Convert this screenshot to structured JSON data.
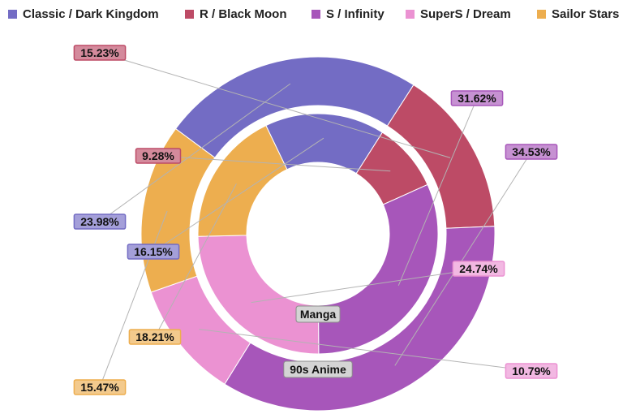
{
  "chart_data": {
    "type": "doughnut",
    "legend_position": "top",
    "categories": [
      "Classic / Dark Kingdom",
      "R / Black Moon",
      "S / Infinity",
      "SuperS / Dream",
      "Sailor Stars"
    ],
    "colors": [
      "#736cc4",
      "#bd4b66",
      "#a756ba",
      "#eb92d2",
      "#edae4f"
    ],
    "series": [
      {
        "name": "90s Anime",
        "ring": "outer",
        "values": [
          23.98,
          15.23,
          34.53,
          10.79,
          15.47
        ]
      },
      {
        "name": "Manga",
        "ring": "inner",
        "values": [
          16.15,
          9.28,
          31.62,
          24.74,
          18.21
        ]
      }
    ]
  }
}
